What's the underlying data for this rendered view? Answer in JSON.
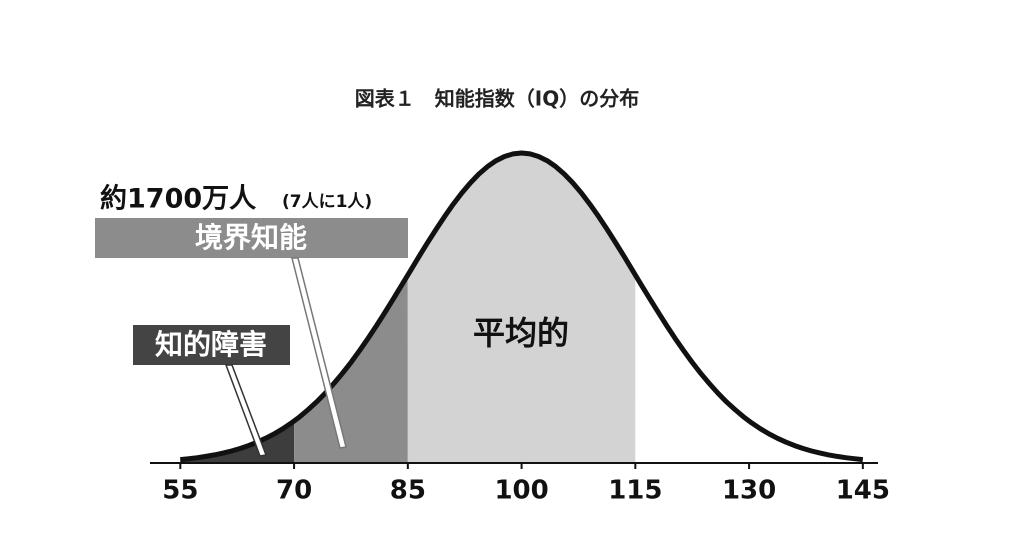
{
  "chart_data": {
    "type": "normal-regions",
    "title": "図表１　知能指数（IQ）の分布",
    "annotation": {
      "main": "約1700万人",
      "note": "(7人に1人)"
    },
    "xlim": [
      51,
      147
    ],
    "xticks": [
      55,
      70,
      85,
      100,
      115,
      130,
      145
    ],
    "curve_color": "#111111",
    "regions": [
      {
        "label": "知的障害",
        "range": [
          55,
          70
        ],
        "color": "#3d3d3d"
      },
      {
        "label": "境界知能",
        "range": [
          70,
          85
        ],
        "color": "#8c8c8c"
      },
      {
        "label": "平均的",
        "range": [
          85,
          115
        ],
        "color": "#d3d3d3"
      }
    ]
  }
}
